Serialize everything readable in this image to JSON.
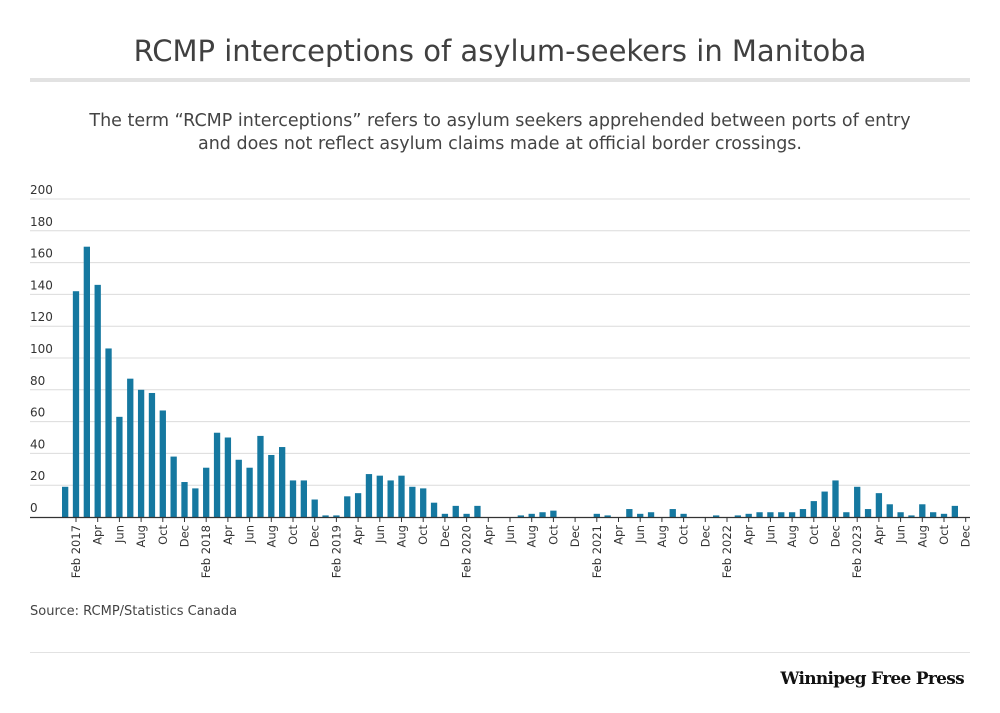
{
  "header": {
    "title": "RCMP interceptions of asylum-seekers in Manitoba",
    "subtitle_line1": "The term “RCMP interceptions” refers to asylum seekers apprehended between ports of entry",
    "subtitle_line2": "and does not reflect asylum claims made at official border crossings."
  },
  "footer": {
    "source": "Source: RCMP/Statistics Canada",
    "brand": "Winnipeg Free Press"
  },
  "colors": {
    "bar": "#1578a0",
    "grid": "#dcdcdc",
    "axis": "#333333",
    "text": "#333333"
  },
  "chart_data": {
    "type": "bar",
    "title": "RCMP interceptions of asylum-seekers in Manitoba",
    "xlabel": "",
    "ylabel": "",
    "ylim": [
      0,
      200
    ],
    "yticks": [
      0,
      20,
      40,
      60,
      80,
      100,
      120,
      140,
      160,
      180,
      200
    ],
    "grid": true,
    "legend": "none",
    "categories": [
      "Jan 2017",
      "Feb 2017",
      "Mar 2017",
      "Apr 2017",
      "May 2017",
      "Jun 2017",
      "Jul 2017",
      "Aug 2017",
      "Sep 2017",
      "Oct 2017",
      "Nov 2017",
      "Dec 2017",
      "Jan 2018",
      "Feb 2018",
      "Mar 2018",
      "Apr 2018",
      "May 2018",
      "Jun 2018",
      "Jul 2018",
      "Aug 2018",
      "Sep 2018",
      "Oct 2018",
      "Nov 2018",
      "Dec 2018",
      "Jan 2019",
      "Feb 2019",
      "Mar 2019",
      "Apr 2019",
      "May 2019",
      "Jun 2019",
      "Jul 2019",
      "Aug 2019",
      "Sep 2019",
      "Oct 2019",
      "Nov 2019",
      "Dec 2019",
      "Jan 2020",
      "Feb 2020",
      "Mar 2020",
      "Apr 2020",
      "May 2020",
      "Jun 2020",
      "Jul 2020",
      "Aug 2020",
      "Sep 2020",
      "Oct 2020",
      "Nov 2020",
      "Dec 2020",
      "Jan 2021",
      "Feb 2021",
      "Mar 2021",
      "Apr 2021",
      "May 2021",
      "Jun 2021",
      "Jul 2021",
      "Aug 2021",
      "Sep 2021",
      "Oct 2021",
      "Nov 2021",
      "Dec 2021",
      "Jan 2022",
      "Feb 2022",
      "Mar 2022",
      "Apr 2022",
      "May 2022",
      "Jun 2022",
      "Jul 2022",
      "Aug 2022",
      "Sep 2022",
      "Oct 2022",
      "Nov 2022",
      "Dec 2022",
      "Jan 2023",
      "Feb 2023",
      "Mar 2023",
      "Apr 2023",
      "May 2023",
      "Jun 2023",
      "Jul 2023",
      "Aug 2023",
      "Sep 2023",
      "Oct 2023",
      "Nov 2023",
      "Dec 2023"
    ],
    "values": [
      19,
      142,
      170,
      146,
      106,
      63,
      87,
      80,
      78,
      67,
      38,
      22,
      18,
      31,
      53,
      50,
      36,
      31,
      51,
      39,
      44,
      23,
      23,
      11,
      1,
      1,
      13,
      15,
      27,
      26,
      23,
      26,
      19,
      18,
      9,
      2,
      7,
      2,
      7,
      0,
      0,
      0,
      1,
      2,
      3,
      4,
      0,
      0,
      0,
      2,
      1,
      0,
      5,
      2,
      3,
      0,
      5,
      2,
      0,
      0,
      1,
      0,
      1,
      2,
      3,
      3,
      3,
      3,
      5,
      10,
      16,
      23,
      3,
      19,
      5,
      15,
      8,
      3,
      1,
      8,
      3,
      2,
      7,
      0
    ],
    "tick_labels": [
      {
        "index": 1,
        "label": "Feb 2017"
      },
      {
        "index": 3,
        "label": "Apr"
      },
      {
        "index": 5,
        "label": "Jun"
      },
      {
        "index": 7,
        "label": "Aug"
      },
      {
        "index": 9,
        "label": "Oct"
      },
      {
        "index": 11,
        "label": "Dec"
      },
      {
        "index": 13,
        "label": "Feb 2018"
      },
      {
        "index": 15,
        "label": "Apr"
      },
      {
        "index": 17,
        "label": "Jun"
      },
      {
        "index": 19,
        "label": "Aug"
      },
      {
        "index": 21,
        "label": "Oct"
      },
      {
        "index": 23,
        "label": "Dec"
      },
      {
        "index": 25,
        "label": "Feb 2019"
      },
      {
        "index": 27,
        "label": "Apr"
      },
      {
        "index": 29,
        "label": "Jun"
      },
      {
        "index": 31,
        "label": "Aug"
      },
      {
        "index": 33,
        "label": "Oct"
      },
      {
        "index": 35,
        "label": "Dec"
      },
      {
        "index": 37,
        "label": "Feb 2020"
      },
      {
        "index": 39,
        "label": "Apr"
      },
      {
        "index": 41,
        "label": "Jun"
      },
      {
        "index": 43,
        "label": "Aug"
      },
      {
        "index": 45,
        "label": "Oct"
      },
      {
        "index": 47,
        "label": "Dec"
      },
      {
        "index": 49,
        "label": "Feb 2021"
      },
      {
        "index": 51,
        "label": "Apr"
      },
      {
        "index": 53,
        "label": "Jun"
      },
      {
        "index": 55,
        "label": "Aug"
      },
      {
        "index": 57,
        "label": "Oct"
      },
      {
        "index": 59,
        "label": "Dec"
      },
      {
        "index": 61,
        "label": "Feb 2022"
      },
      {
        "index": 63,
        "label": "Apr"
      },
      {
        "index": 65,
        "label": "Jun"
      },
      {
        "index": 67,
        "label": "Aug"
      },
      {
        "index": 69,
        "label": "Oct"
      },
      {
        "index": 71,
        "label": "Dec"
      },
      {
        "index": 73,
        "label": "Feb 2023"
      },
      {
        "index": 75,
        "label": "Apr"
      },
      {
        "index": 77,
        "label": "Jun"
      },
      {
        "index": 79,
        "label": "Aug"
      },
      {
        "index": 81,
        "label": "Oct"
      },
      {
        "index": 83,
        "label": "Dec"
      }
    ]
  }
}
